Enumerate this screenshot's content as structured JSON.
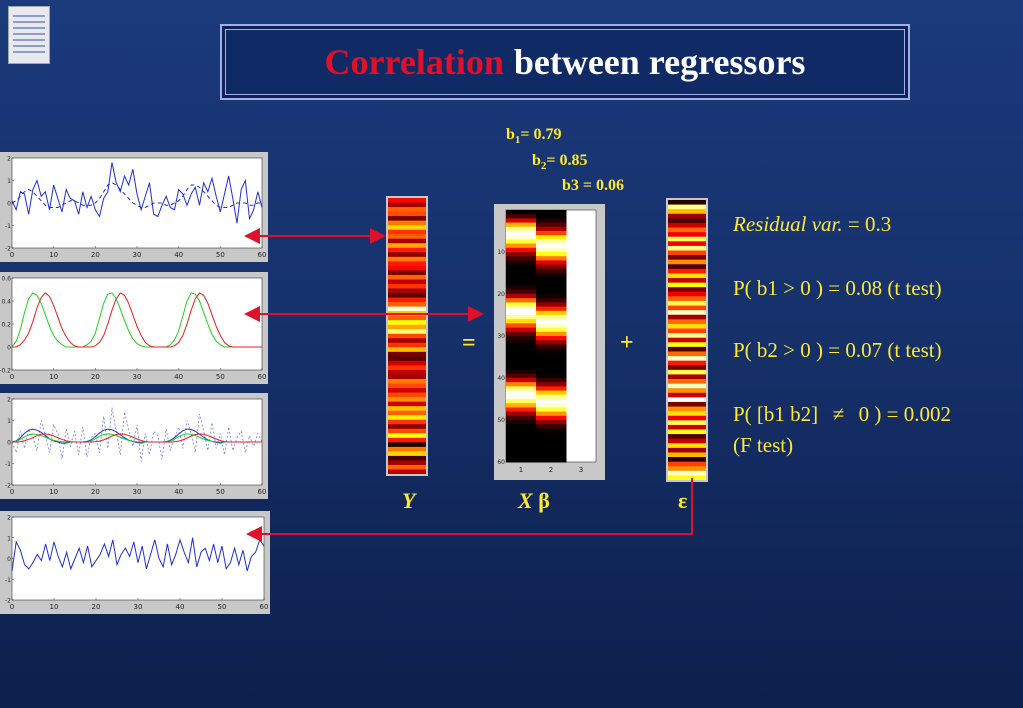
{
  "slide": {
    "title_highlight": "Correlation",
    "title_rest": "between regressors"
  },
  "coefficients": [
    {
      "name": "b",
      "sub": "1",
      "text": "= 0.79"
    },
    {
      "name": "b",
      "sub": "2",
      "text": "= 0.85"
    },
    {
      "name": "b3",
      "sub": "",
      "text": " = 0.06"
    }
  ],
  "equation": {
    "y_label": "Y",
    "x_label": "X",
    "beta": "β",
    "equals": "=",
    "plus": "+",
    "epsilon": "ε"
  },
  "stats": {
    "residual_label": "Residual var.",
    "residual_eq": " =  0.3",
    "p1": "P( b1 > 0 ) = 0.08 (t test)",
    "p2": "P( b2 > 0 ) = 0.07 (t test)",
    "p3_a": "P( [b1 b2]",
    "p3_b": "0 ) = 0.002",
    "p3_c": "(F test)"
  },
  "colors": {
    "arrow": "#e0102a",
    "text": "#ffe830",
    "blue_line": "#2030d0",
    "green_line": "#20d020",
    "red_line": "#e02020"
  },
  "chart_data": [
    {
      "type": "line",
      "xticks": [
        0,
        10,
        20,
        30,
        40,
        50,
        60
      ],
      "yticks": [
        -2,
        -1,
        0,
        1,
        2
      ],
      "ylim": [
        -2,
        2
      ],
      "series": [
        {
          "values": [
            0.1,
            -0.3,
            0.5,
            0.4,
            -0.5,
            0.6,
            1.0,
            0.3,
            0.5,
            -0.3,
            0.8,
            0.2,
            -0.4,
            0.6,
            0.2,
            0.1,
            -0.5,
            0.5,
            -0.2,
            0.3,
            -0.3,
            -0.6,
            0.2,
            0.5,
            1.8,
            0.9,
            0.5,
            1.2,
            0.8,
            1.5,
            0.4,
            -0.3,
            0.3,
            0.9,
            -0.5,
            -0.6,
            -0.1,
            0.3,
            -0.2,
            -0.3,
            0.6,
            0.4,
            -0.1,
            0.4,
            0.7,
            -0.1,
            0.9,
            0.5,
            1.1,
            0.3,
            -0.4,
            0.4,
            1.2,
            0.2,
            -0.9,
            0.6,
            1.0,
            -0.7,
            -0.3,
            0.5,
            -0.2
          ]
        },
        {
          "values": [
            0.0,
            0.1,
            0.3,
            0.5,
            0.6,
            0.5,
            0.3,
            0.1,
            -0.1,
            -0.2,
            -0.2,
            -0.2,
            -0.1,
            0.0,
            0.1,
            0.1,
            0.0,
            -0.1,
            -0.1,
            -0.1,
            0.0,
            0.2,
            0.5,
            0.8,
            0.9,
            0.8,
            0.6,
            0.4,
            0.2,
            0.0,
            -0.1,
            -0.2,
            -0.2,
            -0.1,
            0.0,
            0.0,
            0.0,
            -0.1,
            -0.1,
            0.0,
            0.1,
            0.3,
            0.6,
            0.8,
            0.8,
            0.7,
            0.5,
            0.3,
            0.1,
            -0.1,
            -0.2,
            -0.2,
            -0.2,
            -0.1,
            0.0,
            0.0,
            0.0,
            -0.1,
            -0.1,
            0.0,
            0.0
          ]
        }
      ]
    },
    {
      "type": "line",
      "xticks": [
        0,
        10,
        20,
        30,
        40,
        50,
        60
      ],
      "yticks": [
        -0.2,
        0,
        0.2,
        0.4,
        0.6
      ],
      "ylim": [
        -0.2,
        0.6
      ],
      "series": [
        {
          "values": [
            0.0,
            0.05,
            0.15,
            0.3,
            0.42,
            0.47,
            0.45,
            0.38,
            0.28,
            0.18,
            0.1,
            0.05,
            0.02,
            0.0,
            0.0,
            0.0,
            0.0,
            0.0,
            0.02,
            0.05,
            0.12,
            0.25,
            0.38,
            0.46,
            0.47,
            0.42,
            0.33,
            0.23,
            0.14,
            0.07,
            0.03,
            0.01,
            0.0,
            0.0,
            0.0,
            0.0,
            0.0,
            0.0,
            0.02,
            0.06,
            0.14,
            0.27,
            0.4,
            0.47,
            0.46,
            0.4,
            0.3,
            0.2,
            0.11,
            0.05,
            0.02,
            0.0,
            0.0,
            0.0,
            0.0,
            0.0,
            0.0,
            0.0,
            0.0,
            0.0,
            0.0
          ]
        },
        {
          "values": [
            0.0,
            0.0,
            0.02,
            0.06,
            0.12,
            0.22,
            0.34,
            0.43,
            0.47,
            0.44,
            0.36,
            0.26,
            0.16,
            0.09,
            0.04,
            0.01,
            0.0,
            0.0,
            0.0,
            0.0,
            0.01,
            0.04,
            0.1,
            0.2,
            0.32,
            0.42,
            0.47,
            0.45,
            0.38,
            0.28,
            0.18,
            0.1,
            0.04,
            0.01,
            0.0,
            0.0,
            0.0,
            0.0,
            0.0,
            0.01,
            0.04,
            0.1,
            0.2,
            0.32,
            0.42,
            0.47,
            0.45,
            0.38,
            0.28,
            0.18,
            0.1,
            0.04,
            0.01,
            0.0,
            0.0,
            0.0,
            0.0,
            0.0,
            0.0,
            0.0,
            0.0
          ]
        }
      ]
    },
    {
      "type": "line",
      "xticks": [
        0,
        10,
        20,
        30,
        40,
        50,
        60
      ],
      "yticks": [
        -2,
        -1,
        0,
        1,
        2
      ],
      "ylim": [
        -2,
        2
      ],
      "series": [
        {
          "values": [
            0.0,
            -0.5,
            0.5,
            -0.3,
            0.6,
            0.2,
            -0.4,
            1.0,
            0.3,
            -0.5,
            0.8,
            0.4,
            -0.8,
            0.6,
            -0.2,
            0.5,
            -0.6,
            0.7,
            -0.7,
            0.2,
            0.4,
            -0.5,
            1.2,
            -0.3,
            1.6,
            0.5,
            -0.6,
            1.4,
            0.6,
            -0.2,
            0.8,
            -0.9,
            0.4,
            -0.6,
            0.5,
            0.3,
            -0.8,
            0.6,
            -0.4,
            0.2,
            0.7,
            -0.3,
            1.0,
            0.4,
            -0.5,
            1.3,
            0.5,
            -0.4,
            0.9,
            -0.3,
            0.4,
            -0.6,
            0.7,
            -0.4,
            0.2,
            0.5,
            -0.5,
            0.3,
            -0.2,
            0.4,
            0.0
          ]
        },
        {
          "values": [
            0.0,
            0.05,
            0.2,
            0.4,
            0.55,
            0.6,
            0.55,
            0.45,
            0.3,
            0.15,
            0.05,
            0.0,
            -0.05,
            -0.05,
            0.0,
            0.0,
            0.0,
            0.0,
            0.03,
            0.1,
            0.25,
            0.42,
            0.55,
            0.6,
            0.57,
            0.48,
            0.33,
            0.2,
            0.08,
            0.02,
            -0.03,
            -0.05,
            0.0,
            0.0,
            0.0,
            0.0,
            0.0,
            0.02,
            0.08,
            0.2,
            0.38,
            0.52,
            0.6,
            0.58,
            0.5,
            0.36,
            0.22,
            0.1,
            0.03,
            -0.02,
            -0.05,
            0.0,
            0.0,
            0.0,
            0.0,
            0.0,
            0.0,
            0.0,
            0.0,
            0.0,
            0.0
          ]
        },
        {
          "values": [
            0.0,
            0.03,
            0.12,
            0.24,
            0.33,
            0.37,
            0.35,
            0.3,
            0.22,
            0.14,
            0.08,
            0.04,
            0.01,
            0.0,
            0.0,
            0.0,
            0.0,
            0.0,
            0.02,
            0.05,
            0.15,
            0.27,
            0.35,
            0.38,
            0.36,
            0.3,
            0.22,
            0.14,
            0.07,
            0.03,
            0.01,
            0.0,
            0.0,
            0.0,
            0.0,
            0.0,
            0.0,
            0.01,
            0.05,
            0.13,
            0.25,
            0.34,
            0.38,
            0.36,
            0.3,
            0.22,
            0.14,
            0.07,
            0.03,
            0.01,
            0.0,
            0.0,
            0.0,
            0.0,
            0.0,
            0.0,
            0.0,
            0.0,
            0.0,
            0.0,
            0.0
          ]
        },
        {
          "values": [
            0.0,
            0.0,
            0.02,
            0.06,
            0.12,
            0.2,
            0.3,
            0.36,
            0.38,
            0.35,
            0.28,
            0.2,
            0.12,
            0.06,
            0.02,
            0.0,
            0.0,
            0.0,
            0.0,
            0.0,
            0.01,
            0.04,
            0.1,
            0.18,
            0.28,
            0.35,
            0.38,
            0.36,
            0.3,
            0.22,
            0.14,
            0.07,
            0.02,
            0.0,
            0.0,
            0.0,
            0.0,
            0.0,
            0.0,
            0.01,
            0.04,
            0.1,
            0.18,
            0.28,
            0.35,
            0.38,
            0.36,
            0.3,
            0.22,
            0.14,
            0.07,
            0.02,
            0.0,
            0.0,
            0.0,
            0.0,
            0.0,
            0.0,
            0.0,
            0.0,
            0.0
          ]
        }
      ]
    },
    {
      "type": "line",
      "xticks": [
        0,
        10,
        20,
        30,
        40,
        50,
        60
      ],
      "yticks": [
        -2,
        -1,
        0,
        1,
        2
      ],
      "ylim": [
        -2,
        2
      ],
      "series": [
        {
          "values": [
            -0.6,
            0.8,
            0.4,
            -0.3,
            -0.5,
            -0.2,
            0.2,
            -0.1,
            0.7,
            -0.1,
            0.8,
            0.1,
            -0.4,
            0.3,
            -0.5,
            0.0,
            0.5,
            -0.2,
            0.6,
            -0.4,
            -0.1,
            0.2,
            0.7,
            0.1,
            0.9,
            -0.3,
            0.2,
            0.5,
            0.1,
            0.8,
            -0.2,
            0.6,
            -0.5,
            0.2,
            0.9,
            0.0,
            -0.4,
            0.7,
            -0.3,
            0.2,
            0.9,
            0.3,
            -0.2,
            1.0,
            -0.4,
            0.3,
            0.5,
            -0.1,
            0.7,
            -0.2,
            0.6,
            -0.5,
            -0.2,
            0.5,
            -0.3,
            0.4,
            -0.6,
            0.1,
            0.3,
            0.9,
            0.6
          ]
        }
      ]
    },
    {
      "type": "heatmap",
      "rows": 60,
      "cols": 3,
      "xticks": [
        1,
        2,
        3
      ],
      "yticks": [
        10,
        20,
        30,
        40,
        50,
        60
      ]
    }
  ]
}
